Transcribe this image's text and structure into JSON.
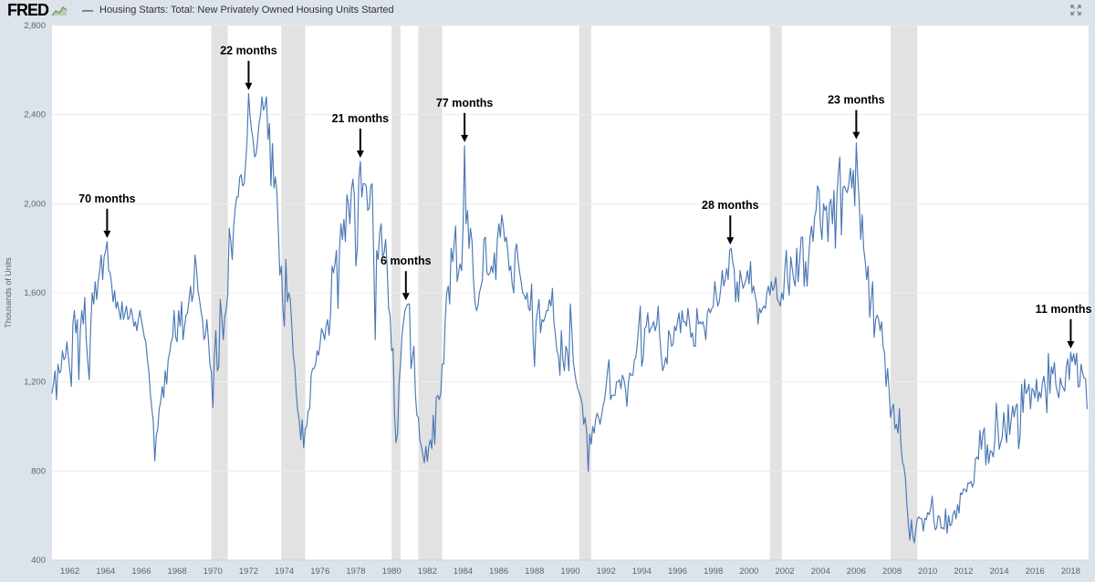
{
  "header": {
    "logo_text": "FRED",
    "legend_dash": "—",
    "series_title": "Housing Starts: Total: New Privately Owned Housing Units Started"
  },
  "chart_data": {
    "type": "line",
    "series_name": "Housing Starts: Total: New Privately Owned Housing Units Started",
    "ylabel": "Thousands of Units",
    "x_start": 1961.0,
    "x_step_months": 1,
    "xlim": [
      1961,
      2019
    ],
    "ylim": [
      400,
      2800
    ],
    "y_ticks": [
      400,
      800,
      1200,
      1600,
      2000,
      2400,
      2800
    ],
    "x_ticks": [
      1962,
      1964,
      1966,
      1968,
      1970,
      1972,
      1974,
      1976,
      1978,
      1980,
      1982,
      1984,
      1986,
      1988,
      1990,
      1992,
      1994,
      1996,
      1998,
      2000,
      2002,
      2004,
      2006,
      2008,
      2010,
      2012,
      2014,
      2016,
      2018
    ],
    "grid": "horizontal",
    "line_color": "#4a77b4",
    "recession_band_color": "#e2e2e2",
    "background_color": "#dce3eb",
    "plot_background": "#ffffff",
    "annotation_color": "#000000",
    "recession_bands": [
      [
        1969.917,
        1970.833
      ],
      [
        1973.833,
        1975.167
      ],
      [
        1980.0,
        1980.5
      ],
      [
        1981.5,
        1982.833
      ],
      [
        1990.5,
        1991.167
      ],
      [
        2001.167,
        2001.833
      ],
      [
        2007.917,
        2009.417
      ]
    ],
    "annotations": [
      {
        "label": "70 months",
        "x": 1964.083,
        "y": 1830
      },
      {
        "label": "22 months",
        "x": 1972.0,
        "y": 2494
      },
      {
        "label": "21 months",
        "x": 1978.25,
        "y": 2190
      },
      {
        "label": "6 months",
        "x": 1980.8,
        "y": 1550
      },
      {
        "label": "77 months",
        "x": 1984.083,
        "y": 2260
      },
      {
        "label": "28 months",
        "x": 1998.95,
        "y": 1800
      },
      {
        "label": "23 months",
        "x": 2006.0,
        "y": 2273
      },
      {
        "label": "11 months",
        "x": 2018.0,
        "y": 1334
      }
    ],
    "values": [
      1150,
      1190,
      1250,
      1120,
      1280,
      1240,
      1250,
      1340,
      1300,
      1310,
      1380,
      1310,
      1250,
      1180,
      1460,
      1520,
      1420,
      1480,
      1210,
      1430,
      1520,
      1460,
      1580,
      1390,
      1290,
      1210,
      1450,
      1600,
      1550,
      1650,
      1570,
      1650,
      1700,
      1770,
      1660,
      1760,
      1790,
      1830,
      1700,
      1690,
      1640,
      1560,
      1610,
      1530,
      1560,
      1520,
      1480,
      1560,
      1480,
      1510,
      1540,
      1480,
      1490,
      1530,
      1500,
      1450,
      1470,
      1430,
      1480,
      1520,
      1480,
      1440,
      1400,
      1380,
      1300,
      1250,
      1150,
      1080,
      1020,
      845,
      960,
      990,
      1080,
      1110,
      1180,
      1130,
      1250,
      1190,
      1300,
      1330,
      1380,
      1400,
      1520,
      1400,
      1380,
      1520,
      1450,
      1560,
      1390,
      1450,
      1500,
      1510,
      1570,
      1630,
      1560,
      1600,
      1770,
      1710,
      1610,
      1570,
      1520,
      1480,
      1390,
      1410,
      1480,
      1390,
      1280,
      1245,
      1085,
      1310,
      1430,
      1250,
      1270,
      1570,
      1490,
      1390,
      1490,
      1530,
      1590,
      1890,
      1830,
      1750,
      1900,
      1980,
      2030,
      2030,
      2120,
      2130,
      2080,
      2090,
      2180,
      2290,
      2494,
      2390,
      2330,
      2290,
      2210,
      2220,
      2280,
      2360,
      2400,
      2480,
      2420,
      2440,
      2480,
      2290,
      2360,
      2080,
      2270,
      2070,
      2120,
      2050,
      1870,
      1680,
      1720,
      1530,
      1450,
      1750,
      1560,
      1600,
      1570,
      1450,
      1320,
      1270,
      1150,
      1070,
      1030,
      940,
      1030,
      904,
      990,
      1000,
      1070,
      1080,
      1230,
      1260,
      1260,
      1280,
      1340,
      1320,
      1370,
      1440,
      1420,
      1390,
      1450,
      1480,
      1410,
      1500,
      1720,
      1690,
      1730,
      1790,
      1530,
      1790,
      1910,
      1840,
      1930,
      1830,
      2040,
      2000,
      1910,
      2060,
      2110,
      2040,
      1720,
      1800,
      2110,
      2190,
      2030,
      2090,
      2090,
      2080,
      1970,
      1980,
      2080,
      2090,
      1750,
      1390,
      1790,
      1750,
      1870,
      1910,
      1760,
      1780,
      1840,
      1720,
      1530,
      1500,
      1340,
      1350,
      1050,
      927,
      970,
      1190,
      1280,
      1410,
      1470,
      1520,
      1540,
      1550,
      1550,
      1260,
      1310,
      1360,
      1140,
      1050,
      1040,
      940,
      911,
      873,
      837,
      910,
      843,
      910,
      940,
      900,
      1050,
      920,
      1130,
      1140,
      1120,
      1150,
      1280,
      1280,
      1480,
      1600,
      1630,
      1550,
      1800,
      1740,
      1820,
      1900,
      1650,
      1690,
      1730,
      1700,
      1900,
      2260,
      1910,
      1970,
      1800,
      1890,
      1830,
      1660,
      1560,
      1520,
      1540,
      1600,
      1630,
      1660,
      1840,
      1850,
      1690,
      1680,
      1690,
      1720,
      1690,
      1780,
      1660,
      1840,
      1910,
      1850,
      1950,
      1900,
      1830,
      1850,
      1790,
      1700,
      1720,
      1640,
      1600,
      1790,
      1820,
      1740,
      1690,
      1650,
      1600,
      1590,
      1570,
      1600,
      1530,
      1520,
      1640,
      1400,
      1270,
      1470,
      1520,
      1570,
      1420,
      1480,
      1470,
      1490,
      1520,
      1520,
      1570,
      1540,
      1620,
      1470,
      1410,
      1340,
      1320,
      1230,
      1430,
      1300,
      1250,
      1360,
      1340,
      1250,
      1550,
      1440,
      1290,
      1240,
      1200,
      1170,
      1150,
      1130,
      1100,
      1010,
      1040,
      970,
      798,
      965,
      920,
      1000,
      970,
      1030,
      1060,
      1040,
      1010,
      1050,
      1090,
      1120,
      1180,
      1250,
      1300,
      1120,
      1140,
      1140,
      1140,
      1200,
      1200,
      1210,
      1170,
      1230,
      1210,
      1170,
      1090,
      1200,
      1240,
      1230,
      1230,
      1300,
      1310,
      1370,
      1460,
      1540,
      1270,
      1310,
      1440,
      1450,
      1510,
      1420,
      1440,
      1450,
      1470,
      1430,
      1460,
      1540,
      1410,
      1320,
      1250,
      1270,
      1310,
      1280,
      1430,
      1410,
      1360,
      1370,
      1450,
      1430,
      1470,
      1510,
      1420,
      1520,
      1470,
      1470,
      1450,
      1530,
      1470,
      1400,
      1420,
      1360,
      1360,
      1530,
      1460,
      1470,
      1460,
      1470,
      1440,
      1390,
      1510,
      1530,
      1510,
      1530,
      1540,
      1650,
      1590,
      1540,
      1560,
      1620,
      1700,
      1630,
      1660,
      1710,
      1660,
      1790,
      1800,
      1740,
      1710,
      1560,
      1650,
      1560,
      1700,
      1660,
      1620,
      1640,
      1660,
      1700,
      1640,
      1740,
      1600,
      1630,
      1590,
      1560,
      1460,
      1530,
      1510,
      1530,
      1540,
      1530,
      1600,
      1630,
      1590,
      1650,
      1610,
      1630,
      1670,
      1570,
      1560,
      1540,
      1600,
      1570,
      1700,
      1790,
      1650,
      1590,
      1760,
      1710,
      1660,
      1630,
      1800,
      1650,
      1750,
      1850,
      1850,
      1630,
      1740,
      1630,
      1750,
      1850,
      1900,
      1830,
      1940,
      1970,
      2080,
      2060,
      1900,
      1840,
      2000,
      1970,
      1990,
      1830,
      2000,
      2020,
      1910,
      2060,
      1800,
      2040,
      2140,
      2210,
      1860,
      2070,
      2080,
      2060,
      2050,
      2090,
      2160,
      2070,
      2150,
      1990,
      2273,
      2120,
      2010,
      1840,
      1950,
      1800,
      1740,
      1660,
      1720,
      1490,
      1570,
      1650,
      1400,
      1480,
      1500,
      1480,
      1430,
      1470,
      1360,
      1330,
      1180,
      1260,
      1170,
      1040,
      1080,
      1100,
      990,
      1010,
      970,
      1080,
      920,
      840,
      820,
      770,
      650,
      560,
      490,
      580,
      505,
      478,
      540,
      585,
      594,
      586,
      585,
      530,
      588,
      581,
      614,
      604,
      636,
      687,
      583,
      536,
      546,
      599,
      594,
      543,
      545,
      539,
      630,
      520,
      600,
      554,
      561,
      608,
      623,
      585,
      650,
      610,
      702,
      694,
      720,
      718,
      706,
      747,
      744,
      754,
      728,
      749,
      854,
      863,
      852,
      983,
      898,
      969,
      994,
      826,
      919,
      835,
      891,
      885,
      863,
      936,
      1105,
      1010,
      897,
      928,
      950,
      1063,
      984,
      927,
      1098,
      963,
      1028,
      1092,
      1043,
      1087,
      1101,
      900,
      954,
      1190,
      1063,
      1211,
      1147,
      1164,
      1189,
      1079,
      1171,
      1160,
      1128,
      1213,
      1113,
      1155,
      1128,
      1195,
      1226,
      1164,
      1062,
      1328,
      1149,
      1268,
      1236,
      1288,
      1189,
      1154,
      1129,
      1217,
      1185,
      1172,
      1158,
      1265,
      1303,
      1210,
      1334,
      1290,
      1327,
      1276,
      1329,
      1177,
      1184,
      1280,
      1237,
      1217,
      1214,
      1080
    ]
  }
}
